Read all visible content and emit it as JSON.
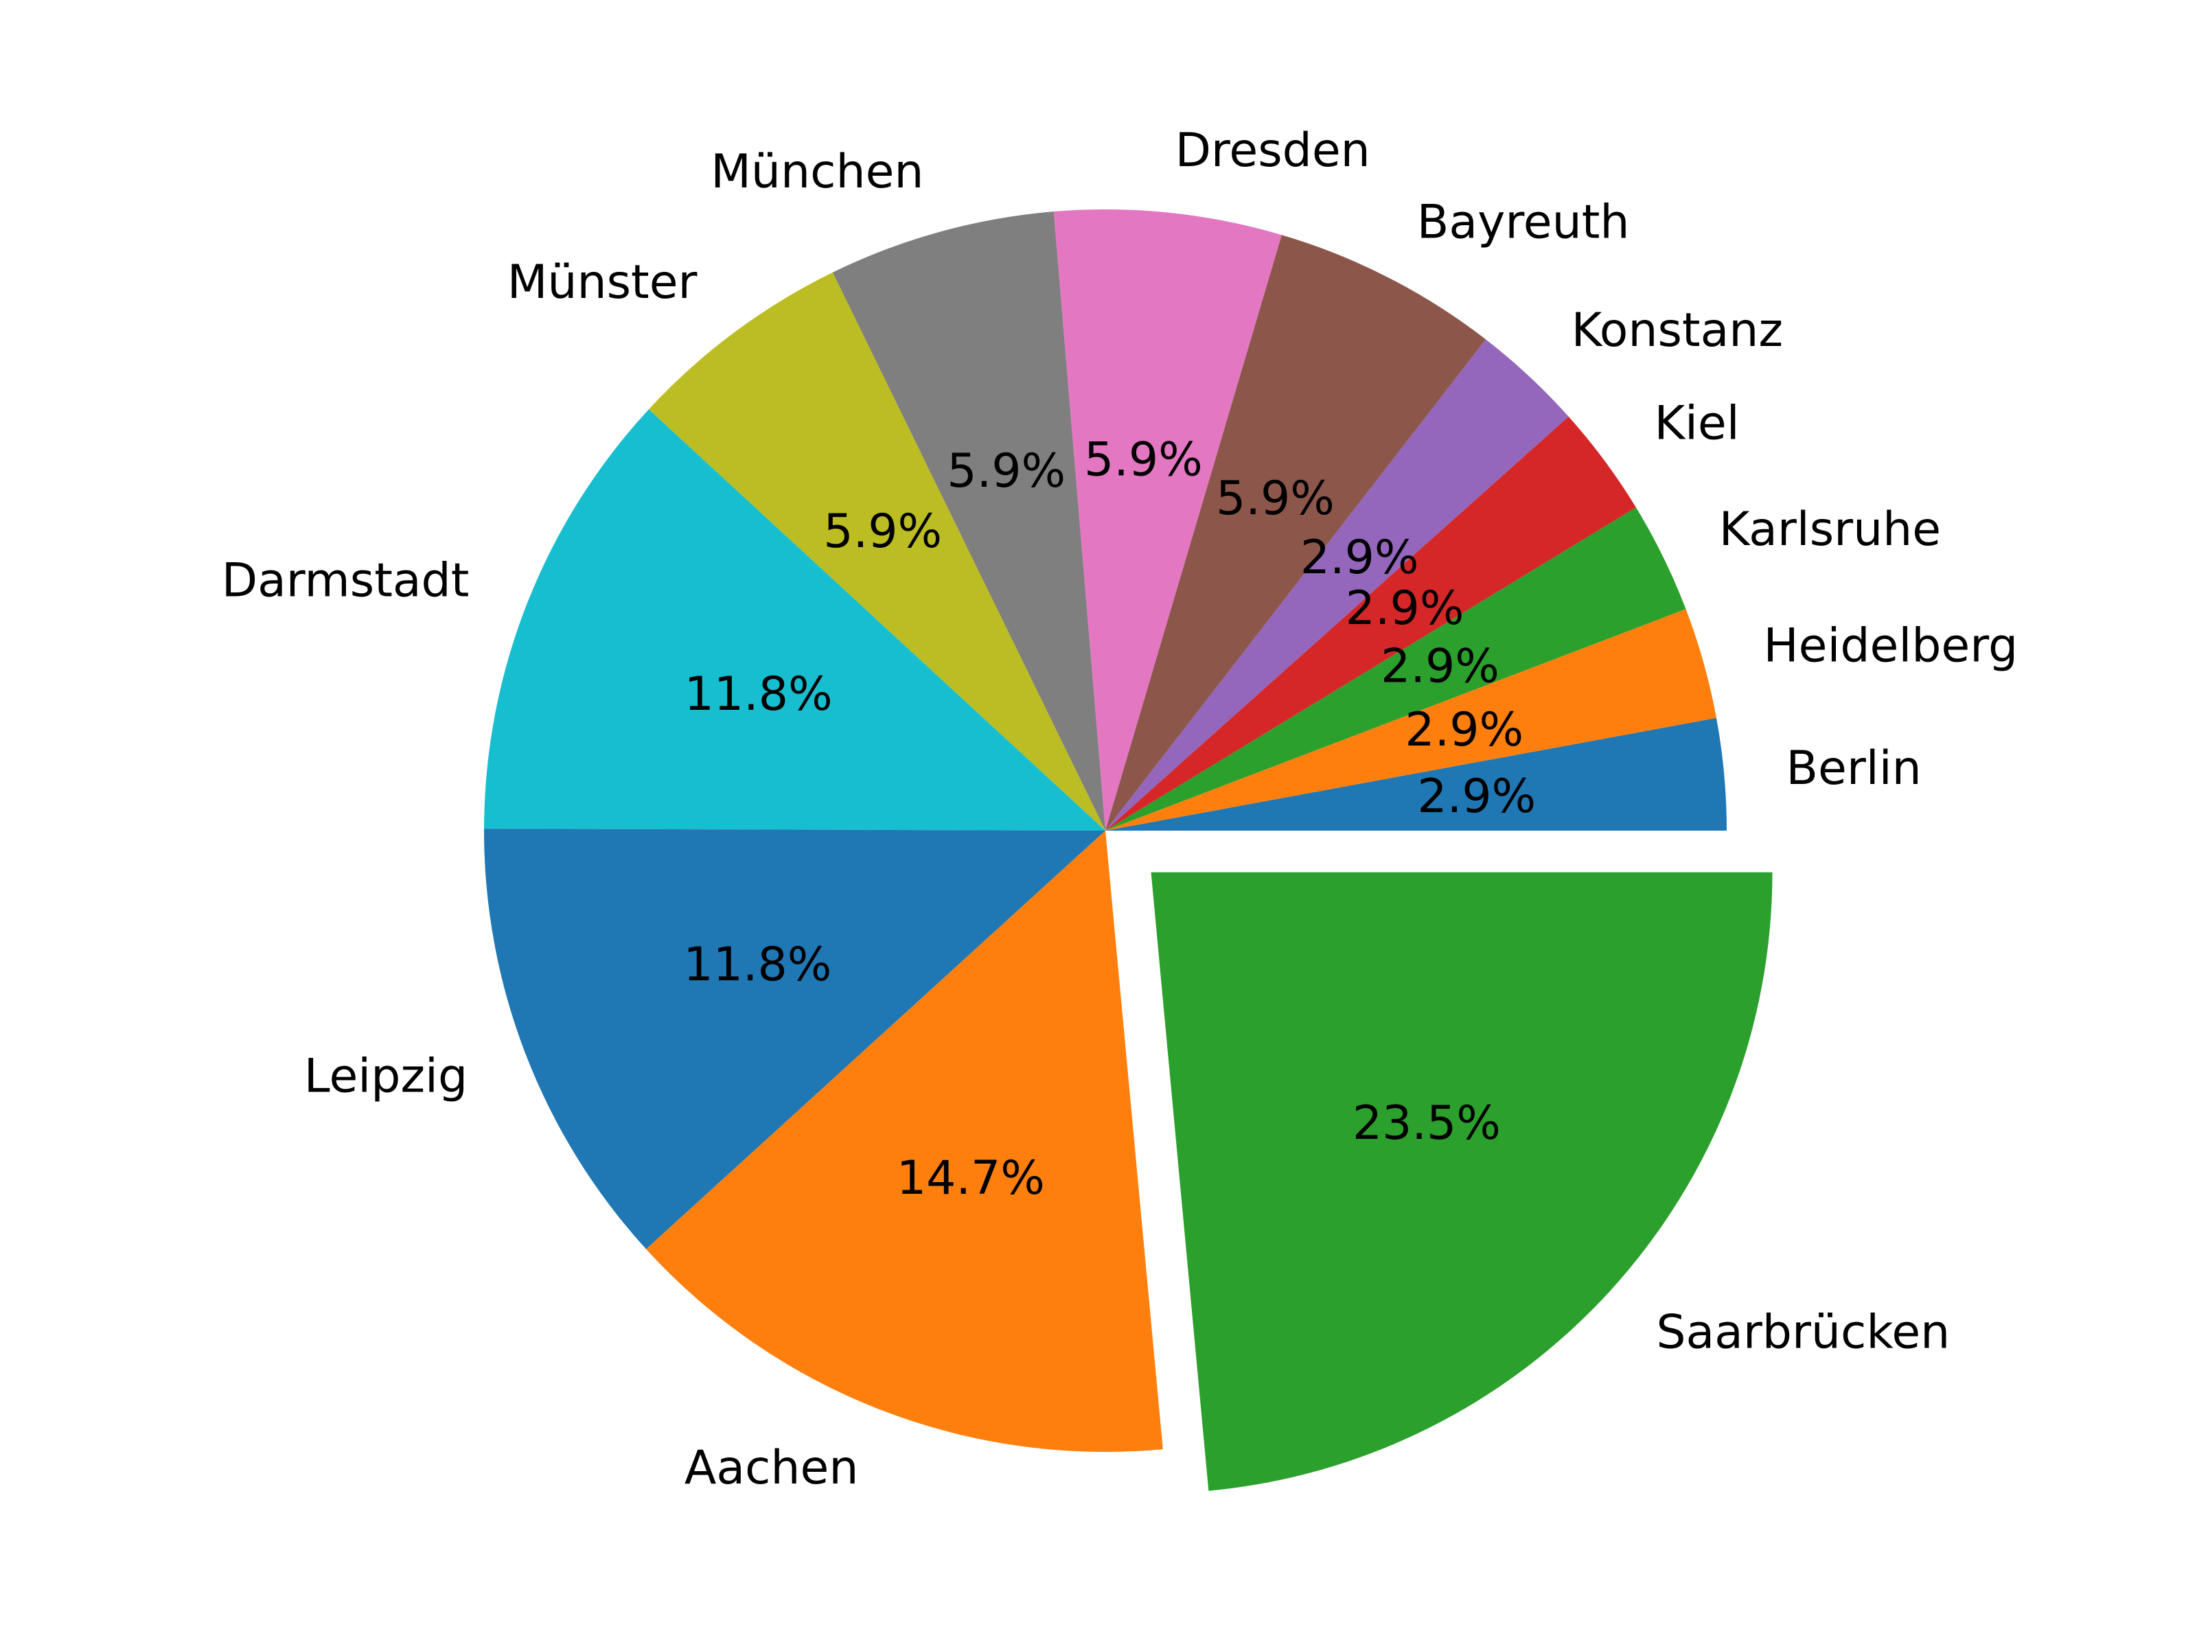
{
  "chart_data": {
    "type": "pie",
    "title": "",
    "start_angle": 0,
    "direction": "counterclockwise",
    "slices": [
      {
        "label": "Berlin",
        "value": 2.9,
        "pct_label": "2.9%",
        "color": "#1f77b4"
      },
      {
        "label": "Heidelberg",
        "value": 2.9,
        "pct_label": "2.9%",
        "color": "#ff7f0e"
      },
      {
        "label": "Karlsruhe",
        "value": 2.9,
        "pct_label": "2.9%",
        "color": "#2ca02c"
      },
      {
        "label": "Kiel",
        "value": 2.9,
        "pct_label": "2.9%",
        "color": "#d62728"
      },
      {
        "label": "Konstanz",
        "value": 2.9,
        "pct_label": "2.9%",
        "color": "#9467bd"
      },
      {
        "label": "Bayreuth",
        "value": 5.9,
        "pct_label": "5.9%",
        "color": "#8c564b"
      },
      {
        "label": "Dresden",
        "value": 5.9,
        "pct_label": "5.9%",
        "color": "#e377c2"
      },
      {
        "label": "München",
        "value": 5.9,
        "pct_label": "5.9%",
        "color": "#7f7f7f"
      },
      {
        "label": "Münster",
        "value": 5.9,
        "pct_label": "5.9%",
        "color": "#bcbd22"
      },
      {
        "label": "Darmstadt",
        "value": 11.8,
        "pct_label": "11.8%",
        "color": "#17becf"
      },
      {
        "label": "Leipzig",
        "value": 11.8,
        "pct_label": "11.8%",
        "color": "#1f77b4"
      },
      {
        "label": "Aachen",
        "value": 14.7,
        "pct_label": "14.7%",
        "color": "#ff7f0e"
      },
      {
        "label": "Saarbrücken",
        "value": 23.5,
        "pct_label": "23.5%",
        "color": "#2ca02c",
        "exploded": true
      }
    ]
  }
}
